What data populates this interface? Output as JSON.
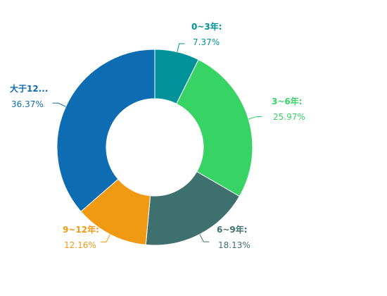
{
  "chart_data": {
    "type": "pie",
    "variant": "donut",
    "title": "",
    "start_angle_deg": 90,
    "direction": "clockwise",
    "slices": [
      {
        "name": "0~3年:",
        "percent_label": "7.37%",
        "value": 7.37,
        "color": "#00919a"
      },
      {
        "name": "3~6年:",
        "percent_label": "25.97%",
        "value": 25.97,
        "color": "#37d465"
      },
      {
        "name": "6~9年:",
        "percent_label": "18.13%",
        "value": 18.13,
        "color": "#3e706d"
      },
      {
        "name": "9~12年:",
        "percent_label": "12.16%",
        "value": 12.16,
        "color": "#f09a14"
      },
      {
        "name": "大于12...",
        "percent_label": "36.37%",
        "value": 36.37,
        "color": "#0e6db2"
      }
    ]
  }
}
